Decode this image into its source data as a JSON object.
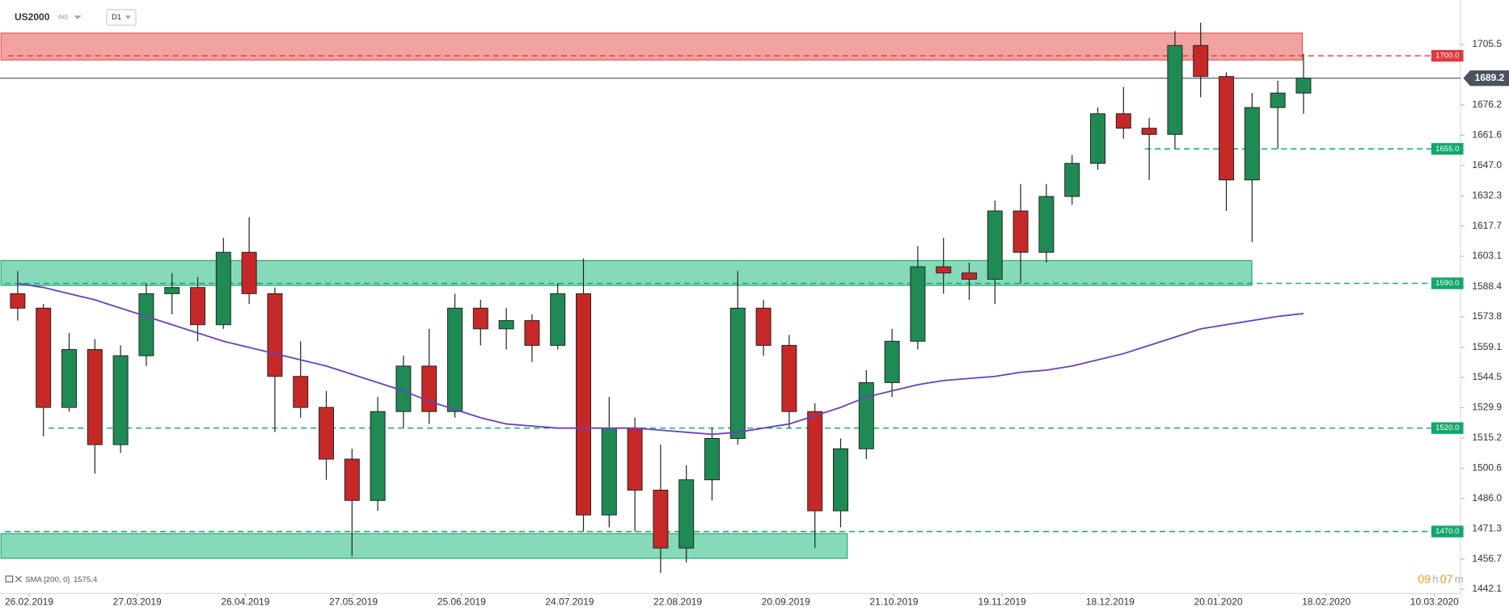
{
  "header": {
    "symbol": "US2000",
    "instrument_type": "IND",
    "timeframe": "D1"
  },
  "chart_data": {
    "type": "candlestick",
    "up_color": "#1f8a54",
    "down_color": "#c62828",
    "open": [
      1585,
      1578,
      1530,
      1558,
      1512,
      1555,
      1585,
      1588,
      1570,
      1605,
      1585,
      1545,
      1530,
      1505,
      1485,
      1528,
      1550,
      1528,
      1578,
      1568,
      1572,
      1560,
      1585,
      1478,
      1520,
      1490,
      1462,
      1495,
      1515,
      1578,
      1560,
      1528,
      1480,
      1510,
      1542,
      1562,
      1598,
      1595,
      1592,
      1625,
      1605,
      1632,
      1648,
      1672,
      1665,
      1662,
      1705,
      1690,
      1640,
      1675,
      1682
    ],
    "high": [
      1596,
      1580,
      1566,
      1563,
      1560,
      1590,
      1595,
      1593,
      1612,
      1622,
      1588,
      1562,
      1538,
      1510,
      1535,
      1555,
      1568,
      1585,
      1582,
      1578,
      1575,
      1590,
      1602,
      1535,
      1525,
      1512,
      1502,
      1520,
      1596,
      1582,
      1565,
      1532,
      1515,
      1548,
      1568,
      1608,
      1612,
      1600,
      1630,
      1638,
      1638,
      1652,
      1675,
      1685,
      1670,
      1712,
      1716,
      1692,
      1682,
      1688,
      1701
    ],
    "low": [
      1572,
      1516,
      1528,
      1498,
      1508,
      1550,
      1575,
      1562,
      1568,
      1580,
      1518,
      1525,
      1495,
      1458,
      1480,
      1520,
      1522,
      1525,
      1560,
      1558,
      1552,
      1558,
      1470,
      1472,
      1470,
      1450,
      1455,
      1485,
      1512,
      1555,
      1520,
      1462,
      1472,
      1505,
      1535,
      1558,
      1585,
      1582,
      1580,
      1590,
      1600,
      1628,
      1645,
      1660,
      1640,
      1655,
      1680,
      1625,
      1610,
      1655,
      1672
    ],
    "close": [
      1578,
      1530,
      1558,
      1512,
      1555,
      1585,
      1588,
      1570,
      1605,
      1585,
      1545,
      1530,
      1505,
      1485,
      1528,
      1550,
      1528,
      1578,
      1568,
      1572,
      1560,
      1585,
      1478,
      1520,
      1490,
      1462,
      1495,
      1515,
      1578,
      1560,
      1528,
      1480,
      1510,
      1542,
      1562,
      1598,
      1595,
      1592,
      1625,
      1605,
      1632,
      1648,
      1672,
      1665,
      1662,
      1705,
      1690,
      1640,
      1675,
      1682,
      1689.2
    ],
    "sma": {
      "name": "SMA [200, 0]",
      "color": "#6a3fc1",
      "values": [
        1590,
        1588,
        1585,
        1582,
        1578,
        1574,
        1570,
        1566,
        1562,
        1559,
        1556,
        1553,
        1550,
        1546,
        1542,
        1538,
        1533,
        1529,
        1525,
        1522,
        1521,
        1520,
        1520,
        1520,
        1520,
        1519,
        1518,
        1517,
        1518,
        1520,
        1522,
        1526,
        1530,
        1535,
        1538,
        1541,
        1543,
        1544,
        1545,
        1547,
        1548,
        1550,
        1553,
        1556,
        1560,
        1564,
        1568,
        1570,
        1572,
        1574,
        1575.4
      ]
    },
    "zones": [
      {
        "low": 1698,
        "high": 1711,
        "color": "#f19d9a",
        "border": "#e05a5a"
      },
      {
        "low": 1589,
        "high": 1601,
        "color": "#7fd8b5",
        "border": "#2ea572"
      },
      {
        "low": 1457,
        "high": 1469,
        "color": "#7fd8b5",
        "border": "#2ea572"
      }
    ],
    "levels": [
      {
        "value": 1700,
        "label": "1700.0",
        "color": "#e0393e"
      },
      {
        "value": 1655,
        "label": "1655.0",
        "color": "#12a86b"
      },
      {
        "value": 1590,
        "label": "1590.0",
        "color": "#12a86b"
      },
      {
        "value": 1520,
        "label": "1520.0",
        "color": "#12a86b"
      },
      {
        "value": 1470,
        "label": "1470.0",
        "color": "#12a86b"
      }
    ],
    "last_price": 1689.2,
    "ylim": [
      1440,
      1727
    ],
    "yticks": [
      1705.5,
      1676.2,
      1661.6,
      {
        "value": 1647,
        "label": "1647.0"
      },
      1632.3,
      1617.7,
      1603.1,
      1588.4,
      1573.8,
      1559.1,
      1544.5,
      1529.9,
      1515.2,
      1500.6,
      {
        "value": 1486,
        "label": "1486.0"
      },
      1471.3,
      1456.7,
      1442.1
    ],
    "xticks": [
      "26.02.2019",
      "27.03.2019",
      "26.04.2019",
      "27.05.2019",
      "25.06.2019",
      "24.07.2019",
      "22.08.2019",
      "20.09.2019",
      "21.10.2019",
      "19.11.2019",
      "18.12.2019",
      "20.01.2020",
      "18.02.2020",
      "10.03.2020"
    ],
    "countdown": [
      "09",
      "h",
      "07",
      "m"
    ]
  }
}
